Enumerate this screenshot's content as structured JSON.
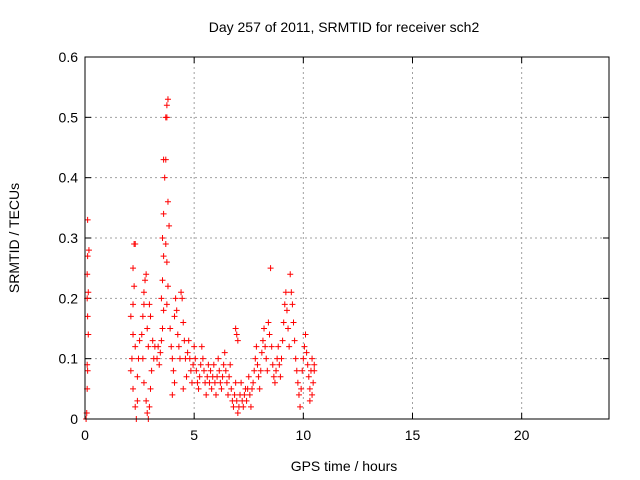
{
  "chart_data": {
    "type": "scatter",
    "title": "Day 257 of 2011, SRMTID for receiver sch2",
    "xlabel": "GPS time / hours",
    "ylabel": "SRMTID / TECUs",
    "xlim": [
      0,
      24
    ],
    "ylim": [
      0,
      0.6
    ],
    "xticks": [
      "0",
      "5",
      "10",
      "15",
      "20"
    ],
    "yticks": [
      "0",
      "0.1",
      "0.2",
      "0.3",
      "0.4",
      "0.5",
      "0.6"
    ],
    "grid": true,
    "marker": "plus",
    "color": "#ff0000",
    "series": [
      {
        "points": [
          [
            0.05,
            0.0
          ],
          [
            0.08,
            0.01
          ],
          [
            0.1,
            0.05
          ],
          [
            0.12,
            0.08
          ],
          [
            0.1,
            0.09
          ],
          [
            0.15,
            0.14
          ],
          [
            0.12,
            0.17
          ],
          [
            0.1,
            0.2
          ],
          [
            0.15,
            0.21
          ],
          [
            0.1,
            0.24
          ],
          [
            0.12,
            0.27
          ],
          [
            0.18,
            0.28
          ],
          [
            0.12,
            0.33
          ],
          [
            2.1,
            0.08
          ],
          [
            2.15,
            0.1
          ],
          [
            2.2,
            0.14
          ],
          [
            2.1,
            0.17
          ],
          [
            2.2,
            0.19
          ],
          [
            2.25,
            0.22
          ],
          [
            2.2,
            0.25
          ],
          [
            2.25,
            0.29
          ],
          [
            2.3,
            0.29
          ],
          [
            2.2,
            0.05
          ],
          [
            2.3,
            0.02
          ],
          [
            2.35,
            0.0
          ],
          [
            2.4,
            0.03
          ],
          [
            2.4,
            0.07
          ],
          [
            2.45,
            0.1
          ],
          [
            2.5,
            0.13
          ],
          [
            2.3,
            0.12
          ],
          [
            2.6,
            0.14
          ],
          [
            2.65,
            0.17
          ],
          [
            2.7,
            0.19
          ],
          [
            2.75,
            0.23
          ],
          [
            2.8,
            0.24
          ],
          [
            2.7,
            0.21
          ],
          [
            2.65,
            0.1
          ],
          [
            2.7,
            0.06
          ],
          [
            2.8,
            0.03
          ],
          [
            2.85,
            0.01
          ],
          [
            2.9,
            0.0
          ],
          [
            2.95,
            0.02
          ],
          [
            3.0,
            0.05
          ],
          [
            3.05,
            0.08
          ],
          [
            2.9,
            0.12
          ],
          [
            2.85,
            0.15
          ],
          [
            3.0,
            0.17
          ],
          [
            2.95,
            0.19
          ],
          [
            3.1,
            0.13
          ],
          [
            3.15,
            0.1
          ],
          [
            3.2,
            0.12
          ],
          [
            3.3,
            0.1
          ],
          [
            3.35,
            0.12
          ],
          [
            3.4,
            0.09
          ],
          [
            3.45,
            0.11
          ],
          [
            3.5,
            0.13
          ],
          [
            3.55,
            0.15
          ],
          [
            3.6,
            0.18
          ],
          [
            3.5,
            0.2
          ],
          [
            3.55,
            0.23
          ],
          [
            3.6,
            0.27
          ],
          [
            3.55,
            0.3
          ],
          [
            3.6,
            0.34
          ],
          [
            3.65,
            0.4
          ],
          [
            3.6,
            0.43
          ],
          [
            3.7,
            0.43
          ],
          [
            3.75,
            0.5
          ],
          [
            3.8,
            0.53
          ],
          [
            3.7,
            0.5
          ],
          [
            3.75,
            0.52
          ],
          [
            3.8,
            0.36
          ],
          [
            3.85,
            0.32
          ],
          [
            3.7,
            0.29
          ],
          [
            3.75,
            0.26
          ],
          [
            3.8,
            0.22
          ],
          [
            3.75,
            0.19
          ],
          [
            3.9,
            0.15
          ],
          [
            3.95,
            0.12
          ],
          [
            4.0,
            0.1
          ],
          [
            4.05,
            0.08
          ],
          [
            4.1,
            0.06
          ],
          [
            4.0,
            0.04
          ],
          [
            4.1,
            0.17
          ],
          [
            4.15,
            0.2
          ],
          [
            4.2,
            0.18
          ],
          [
            4.25,
            0.14
          ],
          [
            4.3,
            0.12
          ],
          [
            4.35,
            0.1
          ],
          [
            4.4,
            0.21
          ],
          [
            4.45,
            0.2
          ],
          [
            4.5,
            0.16
          ],
          [
            4.55,
            0.13
          ],
          [
            4.6,
            0.1
          ],
          [
            4.65,
            0.07
          ],
          [
            4.5,
            0.05
          ],
          [
            4.7,
            0.11
          ],
          [
            4.75,
            0.13
          ],
          [
            4.8,
            0.1
          ],
          [
            4.85,
            0.08
          ],
          [
            4.9,
            0.06
          ],
          [
            4.95,
            0.09
          ],
          [
            5.0,
            0.12
          ],
          [
            5.05,
            0.1
          ],
          [
            5.1,
            0.08
          ],
          [
            5.15,
            0.06
          ],
          [
            5.2,
            0.05
          ],
          [
            5.25,
            0.07
          ],
          [
            5.3,
            0.09
          ],
          [
            5.35,
            0.12
          ],
          [
            5.4,
            0.1
          ],
          [
            5.45,
            0.08
          ],
          [
            5.5,
            0.06
          ],
          [
            5.55,
            0.04
          ],
          [
            5.6,
            0.07
          ],
          [
            5.65,
            0.09
          ],
          [
            5.7,
            0.06
          ],
          [
            5.75,
            0.08
          ],
          [
            5.8,
            0.05
          ],
          [
            5.85,
            0.07
          ],
          [
            5.9,
            0.09
          ],
          [
            5.95,
            0.06
          ],
          [
            6.0,
            0.04
          ],
          [
            6.05,
            0.07
          ],
          [
            6.1,
            0.1
          ],
          [
            6.15,
            0.08
          ],
          [
            6.2,
            0.06
          ],
          [
            6.25,
            0.05
          ],
          [
            6.3,
            0.07
          ],
          [
            6.35,
            0.09
          ],
          [
            6.4,
            0.11
          ],
          [
            6.45,
            0.08
          ],
          [
            6.5,
            0.06
          ],
          [
            6.55,
            0.04
          ],
          [
            6.6,
            0.07
          ],
          [
            6.65,
            0.09
          ],
          [
            6.7,
            0.05
          ],
          [
            6.75,
            0.03
          ],
          [
            6.8,
            0.02
          ],
          [
            6.85,
            0.04
          ],
          [
            6.9,
            0.06
          ],
          [
            6.95,
            0.03
          ],
          [
            7.0,
            0.01
          ],
          [
            7.05,
            0.02
          ],
          [
            7.1,
            0.04
          ],
          [
            7.15,
            0.06
          ],
          [
            7.2,
            0.03
          ],
          [
            7.25,
            0.02
          ],
          [
            7.3,
            0.04
          ],
          [
            7.35,
            0.05
          ],
          [
            7.4,
            0.03
          ],
          [
            7.45,
            0.05
          ],
          [
            7.5,
            0.07
          ],
          [
            7.55,
            0.04
          ],
          [
            7.6,
            0.02
          ],
          [
            7.65,
            0.05
          ],
          [
            6.9,
            0.15
          ],
          [
            6.95,
            0.14
          ],
          [
            7.0,
            0.13
          ],
          [
            7.7,
            0.06
          ],
          [
            7.75,
            0.08
          ],
          [
            7.8,
            0.1
          ],
          [
            7.85,
            0.12
          ],
          [
            7.9,
            0.09
          ],
          [
            7.95,
            0.07
          ],
          [
            8.0,
            0.05
          ],
          [
            8.05,
            0.08
          ],
          [
            8.1,
            0.11
          ],
          [
            8.15,
            0.13
          ],
          [
            8.2,
            0.15
          ],
          [
            8.25,
            0.12
          ],
          [
            8.3,
            0.1
          ],
          [
            8.35,
            0.08
          ],
          [
            8.4,
            0.16
          ],
          [
            8.45,
            0.14
          ],
          [
            8.5,
            0.25
          ],
          [
            8.55,
            0.12
          ],
          [
            8.6,
            0.09
          ],
          [
            8.65,
            0.07
          ],
          [
            8.7,
            0.06
          ],
          [
            8.75,
            0.08
          ],
          [
            8.8,
            0.1
          ],
          [
            8.85,
            0.12
          ],
          [
            8.9,
            0.09
          ],
          [
            8.95,
            0.07
          ],
          [
            9.0,
            0.1
          ],
          [
            9.05,
            0.13
          ],
          [
            9.1,
            0.16
          ],
          [
            9.15,
            0.19
          ],
          [
            9.2,
            0.21
          ],
          [
            9.25,
            0.18
          ],
          [
            9.3,
            0.15
          ],
          [
            9.35,
            0.12
          ],
          [
            9.4,
            0.24
          ],
          [
            9.45,
            0.21
          ],
          [
            9.5,
            0.19
          ],
          [
            9.55,
            0.16
          ],
          [
            9.6,
            0.13
          ],
          [
            9.65,
            0.1
          ],
          [
            9.7,
            0.08
          ],
          [
            9.75,
            0.06
          ],
          [
            9.8,
            0.04
          ],
          [
            9.85,
            0.02
          ],
          [
            9.9,
            0.05
          ],
          [
            9.95,
            0.08
          ],
          [
            10.0,
            0.1
          ],
          [
            10.05,
            0.12
          ],
          [
            10.1,
            0.14
          ],
          [
            10.15,
            0.11
          ],
          [
            10.2,
            0.09
          ],
          [
            10.25,
            0.07
          ],
          [
            10.3,
            0.05
          ],
          [
            10.35,
            0.08
          ],
          [
            10.4,
            0.1
          ],
          [
            10.45,
            0.06
          ],
          [
            10.5,
            0.09
          ],
          [
            10.3,
            0.03
          ],
          [
            10.4,
            0.04
          ],
          [
            10.5,
            0.08
          ]
        ]
      }
    ]
  }
}
